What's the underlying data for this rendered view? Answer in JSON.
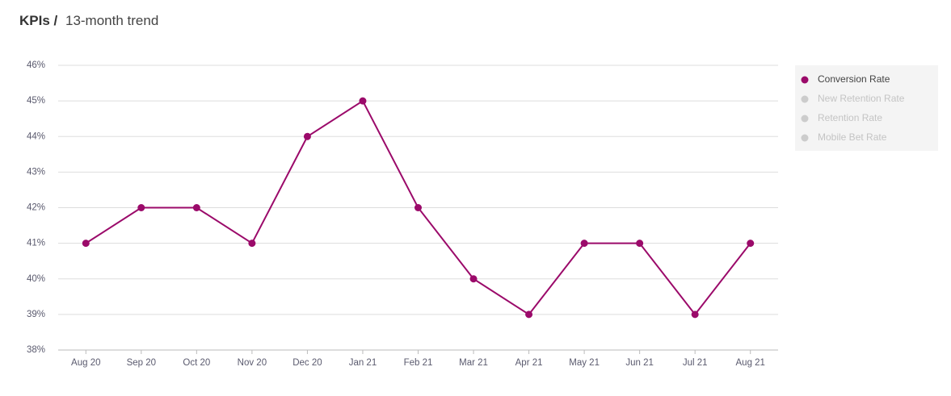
{
  "chart_data": {
    "type": "line",
    "title": "KPIs /",
    "subtitle": "13-month trend",
    "categories": [
      "Aug 20",
      "Sep 20",
      "Oct 20",
      "Nov 20",
      "Dec 20",
      "Jan 21",
      "Feb 21",
      "Mar 21",
      "Apr 21",
      "May 21",
      "Jun 21",
      "Jul 21",
      "Aug 21"
    ],
    "series": [
      {
        "name": "Conversion Rate",
        "color": "#9b0a6a",
        "values": [
          41,
          42,
          42,
          41,
          44,
          45,
          42,
          40,
          39,
          41,
          41,
          39,
          41
        ]
      },
      {
        "name": "New Retention Rate",
        "color": "#cccccc",
        "visible": false
      },
      {
        "name": "Retention Rate",
        "color": "#cccccc",
        "visible": false
      },
      {
        "name": "Mobile Bet Rate",
        "color": "#cccccc",
        "visible": false
      }
    ],
    "ylim": [
      38,
      46
    ],
    "yticks": [
      {
        "value": 38,
        "label": "38%"
      },
      {
        "value": 39,
        "label": "39%"
      },
      {
        "value": 40,
        "label": "40%"
      },
      {
        "value": 41,
        "label": "41%"
      },
      {
        "value": 42,
        "label": "42%"
      },
      {
        "value": 43,
        "label": "43%"
      },
      {
        "value": 44,
        "label": "44%"
      },
      {
        "value": 45,
        "label": "45%"
      },
      {
        "value": 46,
        "label": "46%"
      }
    ],
    "grid": true,
    "legend": "right"
  }
}
